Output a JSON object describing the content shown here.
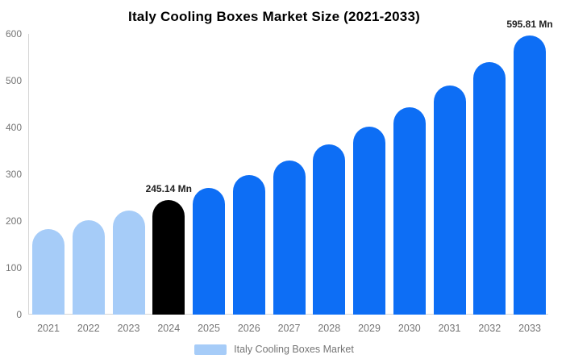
{
  "chart_data": {
    "type": "bar",
    "title": "Italy Cooling Boxes Market Size (2021-2033)",
    "categories": [
      "2021",
      "2022",
      "2023",
      "2024",
      "2025",
      "2026",
      "2027",
      "2028",
      "2029",
      "2030",
      "2031",
      "2032",
      "2033"
    ],
    "values": [
      182.28,
      201.18,
      222.05,
      245.14,
      270.57,
      298.63,
      329.61,
      363.79,
      401.52,
      443.16,
      489.12,
      539.85,
      595.81
    ],
    "bar_colors": [
      "#a6ccf8",
      "#a6ccf8",
      "#a6ccf8",
      "#000000",
      "#0d6ef5",
      "#0d6ef5",
      "#0d6ef5",
      "#0d6ef5",
      "#0d6ef5",
      "#0d6ef5",
      "#0d6ef5",
      "#0d6ef5",
      "#0d6ef5"
    ],
    "data_labels": [
      {
        "index": 3,
        "text": "245.14 Mn"
      },
      {
        "index": 12,
        "text": "595.81 Mn"
      }
    ],
    "xlabel": "",
    "ylabel": "",
    "ylim": [
      0,
      600
    ],
    "yticks": [
      0,
      100,
      200,
      300,
      400,
      500,
      600
    ],
    "grid": false,
    "legend": {
      "position": "bottom",
      "label": "Italy Cooling Boxes Market",
      "swatch_color": "#a6ccf8"
    },
    "colors": {
      "past_bars": "#a6ccf8",
      "highlight_bar": "#000000",
      "forecast_bars": "#0d6ef5",
      "axis_line": "#d6d6d6",
      "tick_text": "#757575",
      "title_text": "#000000",
      "data_label_text": "#212121",
      "background": "#ffffff"
    }
  }
}
